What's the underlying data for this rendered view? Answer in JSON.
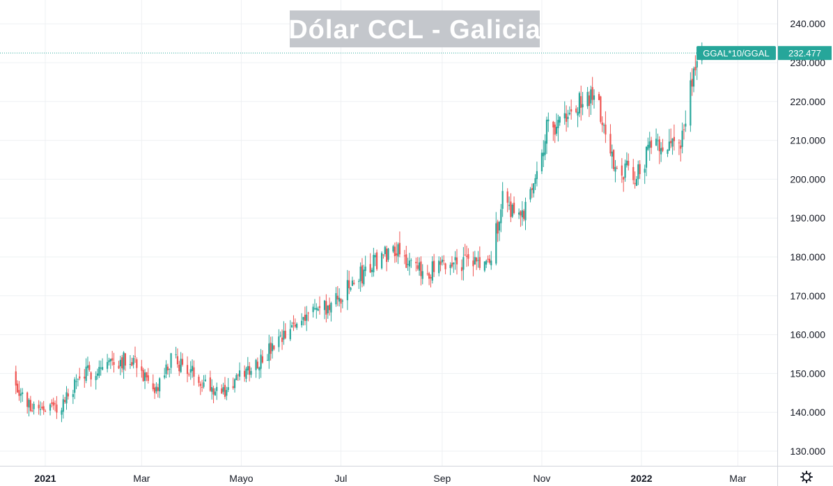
{
  "chart_data": {
    "type": "candlestick",
    "title": "Dólar CCL - Galicia",
    "symbol": "GGAL*10/GGAL",
    "last_price": "232.477",
    "ylim": [
      126,
      245
    ],
    "y_ticks": [
      "130.000",
      "140.000",
      "150.000",
      "160.000",
      "170.000",
      "180.000",
      "190.000",
      "200.000",
      "210.000",
      "220.000",
      "230.000",
      "240.000"
    ],
    "y_tick_values": [
      130,
      140,
      150,
      160,
      170,
      180,
      190,
      200,
      210,
      220,
      230,
      240
    ],
    "x_range": [
      "2020-12-12",
      "2022-03-26"
    ],
    "x_ticks": [
      {
        "label": "2021",
        "date": "2021-01-01",
        "bold": true
      },
      {
        "label": "Mar",
        "date": "2021-03-01",
        "bold": false
      },
      {
        "label": "Mayo",
        "date": "2021-05-01",
        "bold": false
      },
      {
        "label": "Jul",
        "date": "2021-07-01",
        "bold": false
      },
      {
        "label": "Sep",
        "date": "2021-09-01",
        "bold": false
      },
      {
        "label": "Nov",
        "date": "2021-11-01",
        "bold": false
      },
      {
        "label": "2022",
        "date": "2022-01-01",
        "bold": true
      },
      {
        "label": "Mar",
        "date": "2022-03-01",
        "bold": false
      }
    ],
    "grid": true,
    "colors": {
      "up": "#26a69a",
      "down": "#ef5350",
      "grid": "#eef0f3",
      "title_bg": "#c4c7cc",
      "axis_text": "#131722"
    },
    "anchors": [
      {
        "date": "2020-12-12",
        "close": 150
      },
      {
        "date": "2020-12-20",
        "close": 142
      },
      {
        "date": "2021-01-10",
        "close": 141
      },
      {
        "date": "2021-01-22",
        "close": 149
      },
      {
        "date": "2021-02-10",
        "close": 153
      },
      {
        "date": "2021-02-25",
        "close": 154
      },
      {
        "date": "2021-03-08",
        "close": 144
      },
      {
        "date": "2021-03-20",
        "close": 154
      },
      {
        "date": "2021-04-01",
        "close": 150
      },
      {
        "date": "2021-04-20",
        "close": 145
      },
      {
        "date": "2021-05-05",
        "close": 151
      },
      {
        "date": "2021-05-25",
        "close": 158
      },
      {
        "date": "2021-06-10",
        "close": 166
      },
      {
        "date": "2021-06-25",
        "close": 167
      },
      {
        "date": "2021-07-10",
        "close": 174
      },
      {
        "date": "2021-07-25",
        "close": 180
      },
      {
        "date": "2021-08-05",
        "close": 183
      },
      {
        "date": "2021-08-15",
        "close": 176
      },
      {
        "date": "2021-08-31",
        "close": 177
      },
      {
        "date": "2021-09-10",
        "close": 179
      },
      {
        "date": "2021-09-30",
        "close": 178
      },
      {
        "date": "2021-10-08",
        "close": 195
      },
      {
        "date": "2021-10-20",
        "close": 190
      },
      {
        "date": "2021-11-05",
        "close": 214
      },
      {
        "date": "2021-11-15",
        "close": 215
      },
      {
        "date": "2021-11-28",
        "close": 221
      },
      {
        "date": "2021-12-05",
        "close": 220
      },
      {
        "date": "2021-12-15",
        "close": 204
      },
      {
        "date": "2021-12-28",
        "close": 201
      },
      {
        "date": "2022-01-10",
        "close": 210
      },
      {
        "date": "2022-01-25",
        "close": 209
      },
      {
        "date": "2022-02-01",
        "close": 225
      },
      {
        "date": "2022-02-07",
        "close": 232.5
      }
    ]
  }
}
